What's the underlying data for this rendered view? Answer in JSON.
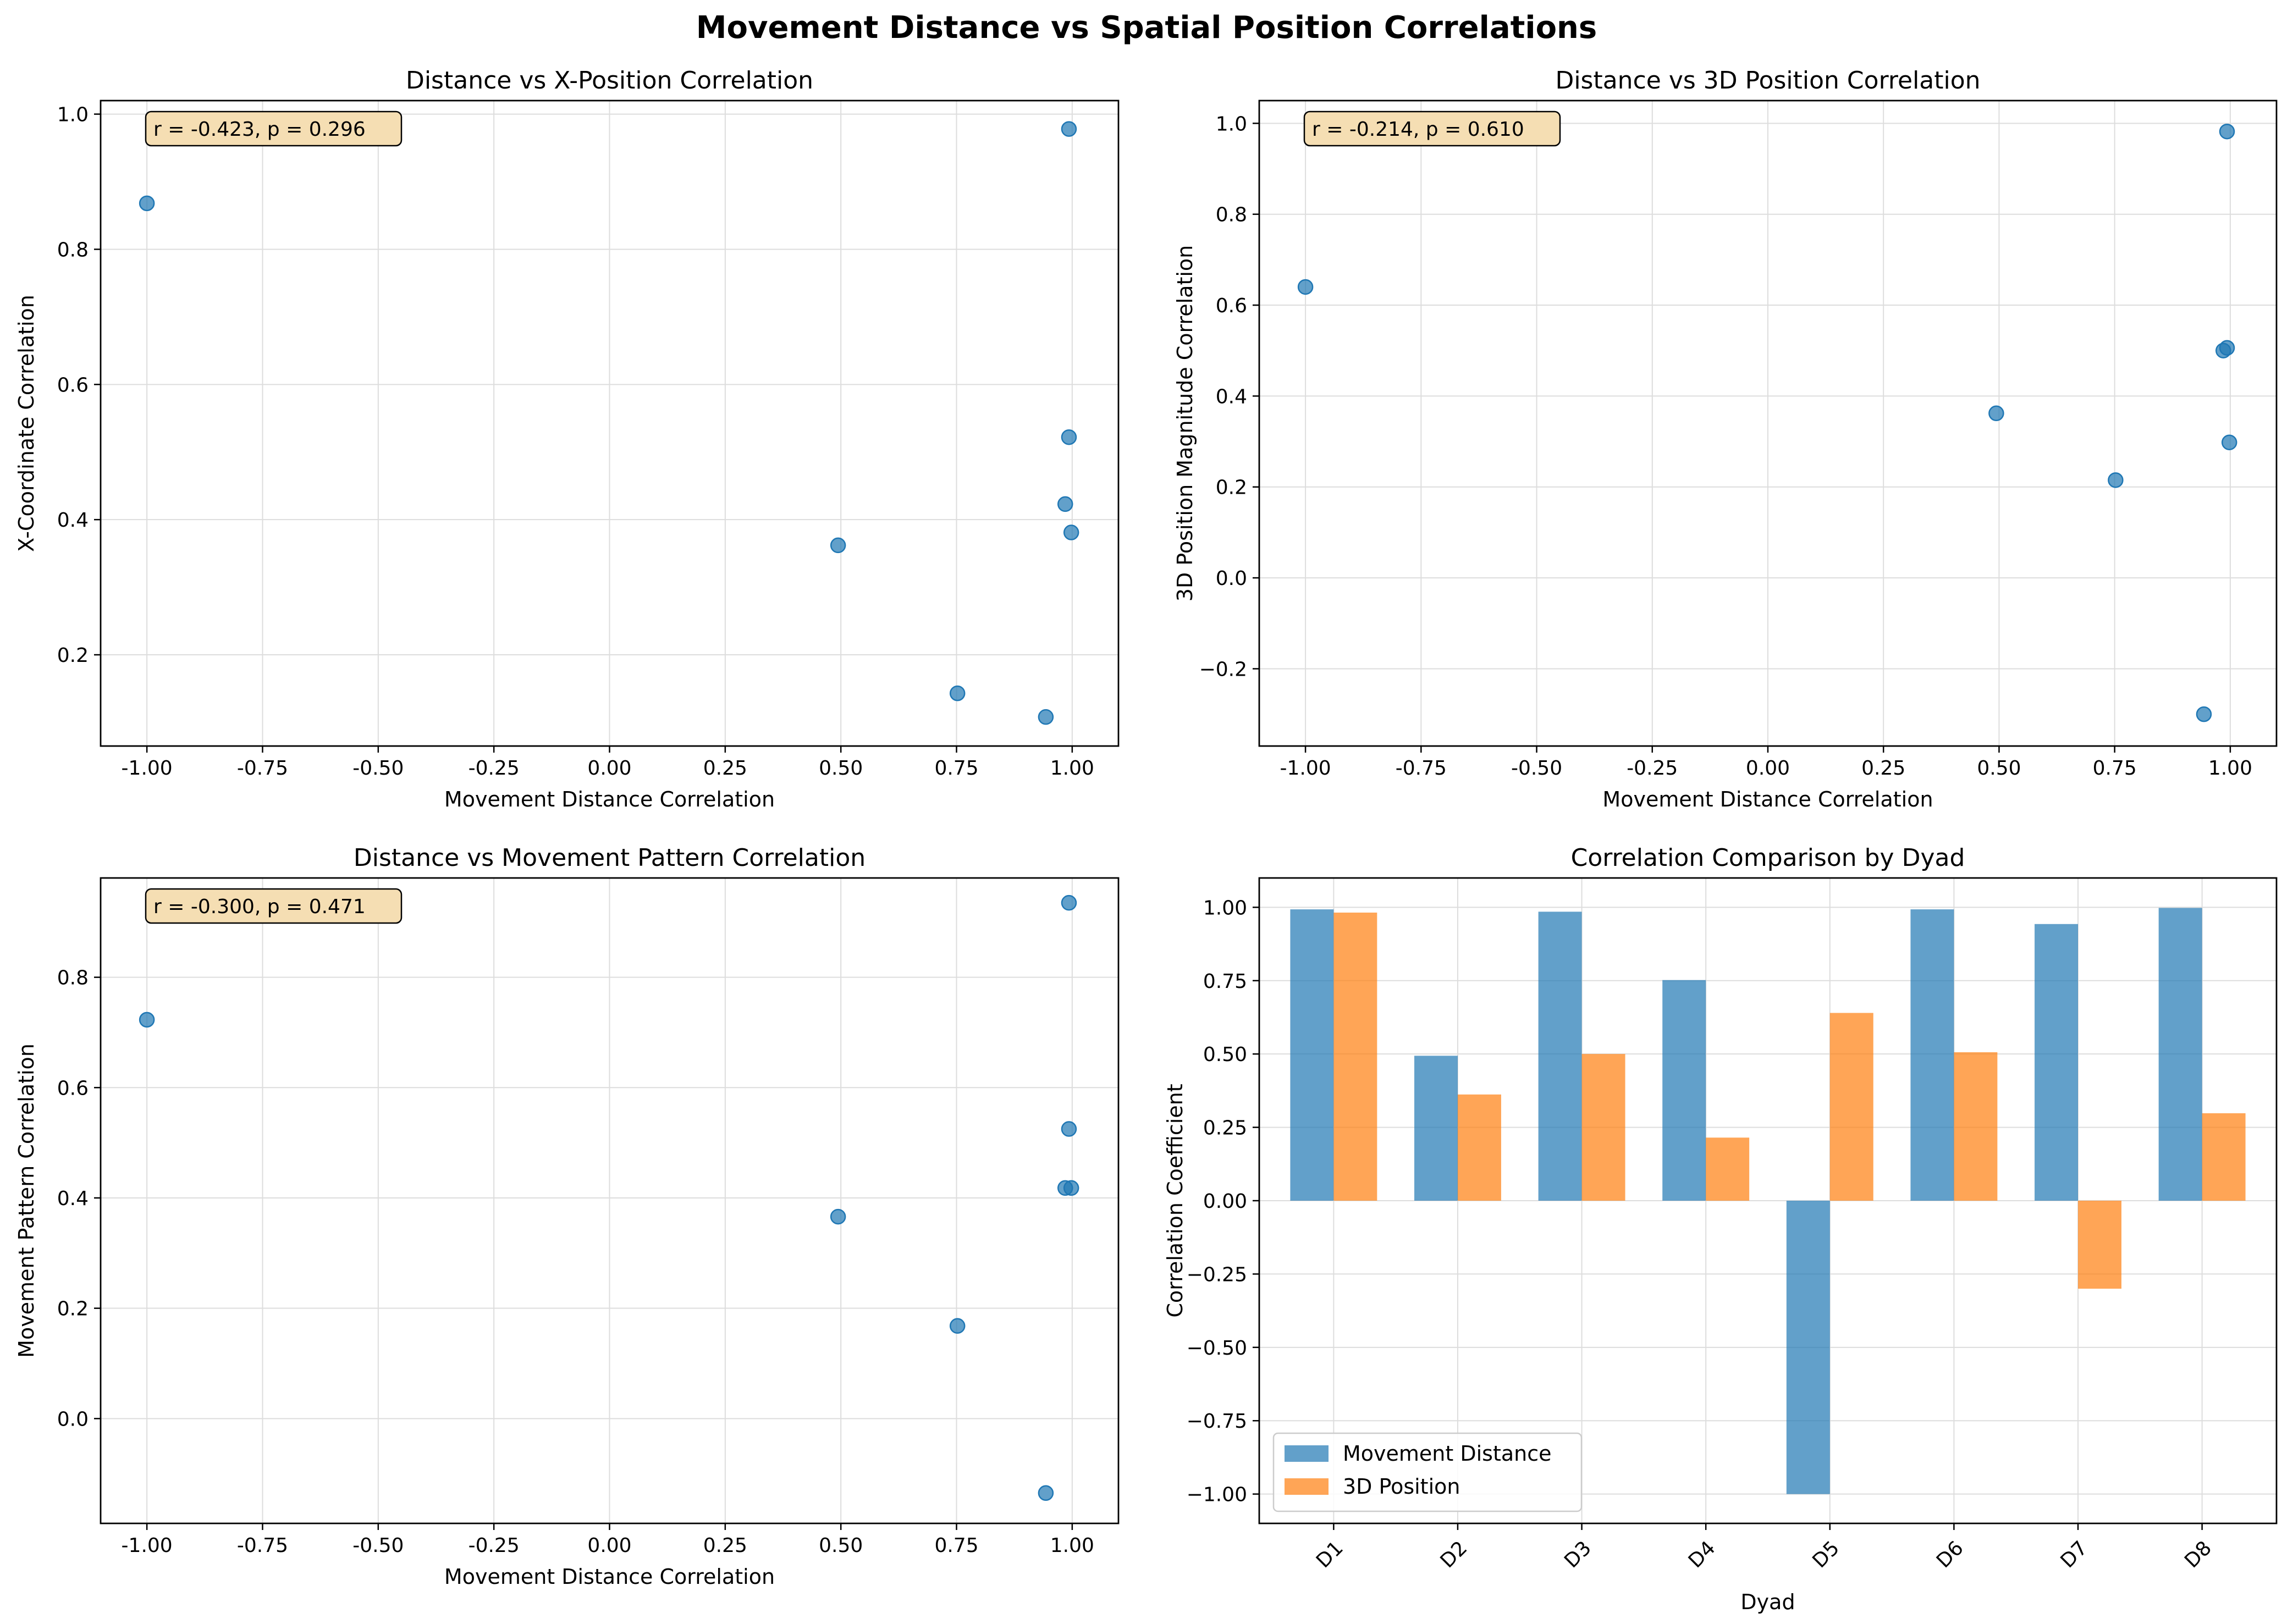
{
  "figure": {
    "title": "Movement Distance vs Spatial Position Correlations"
  },
  "style": {
    "blue": "#1f77b4",
    "orange": "#ff7f0e",
    "annotation_bg": "#f5deb3",
    "grid": "#dddddd"
  },
  "chart_data": [
    {
      "type": "scatter",
      "title": "Distance vs X-Position Correlation",
      "xlabel": "Movement Distance Correlation",
      "ylabel": "X-Coordinate Correlation",
      "annotation": "r = -0.423, p = 0.296",
      "xlim": [
        -1.1,
        1.1
      ],
      "ylim": [
        0.065,
        1.02
      ],
      "xticks": [
        -1.0,
        -0.75,
        -0.5,
        -0.25,
        0.0,
        0.25,
        0.5,
        0.75,
        1.0
      ],
      "xtick_labels": [
        "-1.00",
        "-0.75",
        "-0.50",
        "-0.25",
        "0.00",
        "0.25",
        "0.50",
        "0.75",
        "1.00"
      ],
      "yticks": [
        0.2,
        0.4,
        0.6,
        0.8,
        1.0
      ],
      "ytick_labels": [
        "0.2",
        "0.4",
        "0.6",
        "0.8",
        "1.0"
      ],
      "grid": true,
      "points": [
        {
          "x": -1.0,
          "y": 0.868
        },
        {
          "x": 0.494,
          "y": 0.362
        },
        {
          "x": 0.752,
          "y": 0.143
        },
        {
          "x": 0.943,
          "y": 0.108
        },
        {
          "x": 0.985,
          "y": 0.423
        },
        {
          "x": 0.993,
          "y": 0.978
        },
        {
          "x": 0.993,
          "y": 0.522
        },
        {
          "x": 0.998,
          "y": 0.381
        }
      ]
    },
    {
      "type": "scatter",
      "title": "Distance vs 3D Position Correlation",
      "xlabel": "Movement Distance Correlation",
      "ylabel": "3D Position Magnitude Correlation",
      "annotation": "r = -0.214, p = 0.610",
      "xlim": [
        -1.1,
        1.1
      ],
      "ylim": [
        -0.37,
        1.05
      ],
      "xticks": [
        -1.0,
        -0.75,
        -0.5,
        -0.25,
        0.0,
        0.25,
        0.5,
        0.75,
        1.0
      ],
      "xtick_labels": [
        "-1.00",
        "-0.75",
        "-0.50",
        "-0.25",
        "0.00",
        "0.25",
        "0.50",
        "0.75",
        "1.00"
      ],
      "yticks": [
        -0.2,
        0.0,
        0.2,
        0.4,
        0.6,
        0.8,
        1.0
      ],
      "ytick_labels": [
        "−0.2",
        "0.0",
        "0.2",
        "0.4",
        "0.6",
        "0.8",
        "1.0"
      ],
      "grid": true,
      "points": [
        {
          "x": -1.0,
          "y": 0.64
        },
        {
          "x": 0.494,
          "y": 0.362
        },
        {
          "x": 0.752,
          "y": 0.215
        },
        {
          "x": 0.943,
          "y": -0.3
        },
        {
          "x": 0.985,
          "y": 0.5
        },
        {
          "x": 0.993,
          "y": 0.982
        },
        {
          "x": 0.993,
          "y": 0.506
        },
        {
          "x": 0.998,
          "y": 0.298
        }
      ]
    },
    {
      "type": "scatter",
      "title": "Distance vs Movement Pattern Correlation",
      "xlabel": "Movement Distance Correlation",
      "ylabel": "Movement Pattern Correlation",
      "annotation": "r = -0.300, p = 0.471",
      "xlim": [
        -1.1,
        1.1
      ],
      "ylim": [
        -0.19,
        0.98
      ],
      "xticks": [
        -1.0,
        -0.75,
        -0.5,
        -0.25,
        0.0,
        0.25,
        0.5,
        0.75,
        1.0
      ],
      "xtick_labels": [
        "-1.00",
        "-0.75",
        "-0.50",
        "-0.25",
        "0.00",
        "0.25",
        "0.50",
        "0.75",
        "1.00"
      ],
      "yticks": [
        0.0,
        0.2,
        0.4,
        0.6,
        0.8
      ],
      "ytick_labels": [
        "0.0",
        "0.2",
        "0.4",
        "0.6",
        "0.8"
      ],
      "grid": true,
      "points": [
        {
          "x": -1.0,
          "y": 0.723
        },
        {
          "x": 0.494,
          "y": 0.366
        },
        {
          "x": 0.752,
          "y": 0.168
        },
        {
          "x": 0.943,
          "y": -0.135
        },
        {
          "x": 0.985,
          "y": 0.418
        },
        {
          "x": 0.993,
          "y": 0.935
        },
        {
          "x": 0.993,
          "y": 0.525
        },
        {
          "x": 0.998,
          "y": 0.418
        }
      ]
    },
    {
      "type": "bar",
      "title": "Correlation Comparison by Dyad",
      "xlabel": "Dyad",
      "ylabel": "Correlation Coefficient",
      "categories": [
        "D1",
        "D2",
        "D3",
        "D4",
        "D5",
        "D6",
        "D7",
        "D8"
      ],
      "ylim": [
        -1.1,
        1.1
      ],
      "yticks": [
        -1.0,
        -0.75,
        -0.5,
        -0.25,
        0.0,
        0.25,
        0.5,
        0.75,
        1.0
      ],
      "ytick_labels": [
        "−1.00",
        "−0.75",
        "−0.50",
        "−0.25",
        "0.00",
        "0.25",
        "0.50",
        "0.75",
        "1.00"
      ],
      "grid": true,
      "legend": "lower-left",
      "series": [
        {
          "name": "Movement Distance",
          "values": [
            0.993,
            0.494,
            0.985,
            0.752,
            -1.0,
            0.993,
            0.943,
            0.998
          ]
        },
        {
          "name": "3D Position",
          "values": [
            0.982,
            0.362,
            0.5,
            0.215,
            0.64,
            0.506,
            -0.3,
            0.298
          ]
        }
      ]
    }
  ]
}
